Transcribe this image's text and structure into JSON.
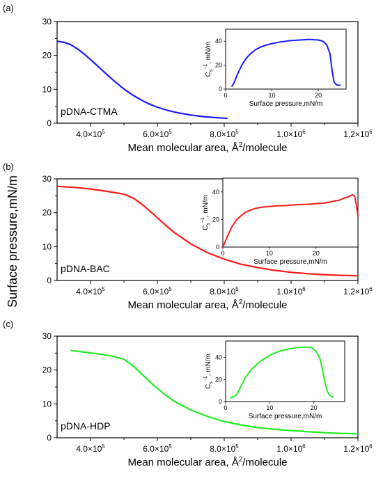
{
  "shared_ylabel": "Surface pressure,mN/m",
  "chart_data": [
    {
      "type": "line",
      "panel_label": "(a)",
      "annotation": "pDNA-CTMA",
      "xlabel_prefix": "Mean molecular area, Å",
      "xlabel_sup": "2",
      "xlabel_suffix": "/molecule",
      "xlim": [
        300000,
        1200000
      ],
      "ylim": [
        0,
        30
      ],
      "xticks": [
        {
          "value": 400000,
          "mantissa": "4.0×10",
          "exp": "5"
        },
        {
          "value": 600000,
          "mantissa": "6.0×10",
          "exp": "5"
        },
        {
          "value": 800000,
          "mantissa": "8.0×10",
          "exp": "5"
        },
        {
          "value": 1000000,
          "mantissa": "1.0×10",
          "exp": "6"
        },
        {
          "value": 1200000,
          "mantissa": "1.2×10",
          "exp": "6"
        }
      ],
      "yticks": [
        0,
        10,
        20,
        30
      ],
      "color": "#1a1aff",
      "x": [
        300000,
        320000,
        340000,
        360000,
        380000,
        400000,
        420000,
        440000,
        460000,
        480000,
        500000,
        520000,
        540000,
        560000,
        580000,
        600000,
        630000,
        660000,
        700000,
        740000,
        780000,
        810000
      ],
      "y": [
        24.2,
        23.9,
        23.2,
        22.0,
        20.5,
        18.8,
        17.0,
        15.2,
        13.4,
        11.7,
        10.1,
        8.7,
        7.5,
        6.4,
        5.5,
        4.7,
        3.8,
        3.1,
        2.4,
        1.9,
        1.6,
        1.4
      ],
      "inset": {
        "xlabel": "Surface pressure,mN/m",
        "ylabel_base": "C",
        "ylabel_sub": "s",
        "ylabel_sup": "−1",
        "ylabel_unit": ", mN/m",
        "xlim": [
          0,
          26
        ],
        "ylim": [
          0,
          50
        ],
        "xticks": [
          0,
          10,
          20
        ],
        "yticks": [
          0,
          20,
          40
        ],
        "x": [
          1.3,
          1.8,
          2.5,
          3.5,
          4.5,
          5.5,
          6.5,
          7.5,
          8.5,
          10,
          12,
          14,
          16,
          18,
          20,
          21,
          21.8,
          22.5,
          23,
          23.4,
          23.8,
          24.2,
          24.8
        ],
        "y": [
          2,
          5,
          12,
          20,
          26,
          30,
          33,
          35,
          36.5,
          38,
          39.5,
          40.5,
          41,
          41.5,
          41,
          40,
          37,
          30,
          15,
          6,
          4,
          3.2,
          3.2
        ]
      }
    },
    {
      "type": "line",
      "panel_label": "(b)",
      "annotation": "pDNA-BAC",
      "xlabel_prefix": "Mean molecular area, Å",
      "xlabel_sup": "2",
      "xlabel_suffix": "/molecule",
      "xlim": [
        300000,
        1200000
      ],
      "ylim": [
        0,
        30
      ],
      "xticks": [
        {
          "value": 400000,
          "mantissa": "4.0×10",
          "exp": "5"
        },
        {
          "value": 600000,
          "mantissa": "6.0×10",
          "exp": "5"
        },
        {
          "value": 800000,
          "mantissa": "8.0×10",
          "exp": "5"
        },
        {
          "value": 1000000,
          "mantissa": "1.0×10",
          "exp": "6"
        },
        {
          "value": 1200000,
          "mantissa": "1.2×10",
          "exp": "6"
        }
      ],
      "yticks": [
        0,
        10,
        20,
        30
      ],
      "color": "#ff1a1a",
      "x": [
        300000,
        350000,
        400000,
        450000,
        500000,
        530000,
        560000,
        590000,
        620000,
        650000,
        700000,
        750000,
        800000,
        850000,
        900000,
        950000,
        1000000,
        1050000,
        1100000,
        1150000,
        1200000
      ],
      "y": [
        27.8,
        27.5,
        27.0,
        26.3,
        25.5,
        24.2,
        22.0,
        19.4,
        16.7,
        14.2,
        10.8,
        8.2,
        6.3,
        4.8,
        3.8,
        3.0,
        2.4,
        2.0,
        1.7,
        1.5,
        1.4
      ],
      "inset": {
        "xlabel": "Surface pressure,mN/m",
        "ylabel_base": "C",
        "ylabel_sub": "s",
        "ylabel_sup": "−1",
        "ylabel_unit": ", mN/m",
        "xlim": [
          0,
          29
        ],
        "ylim": [
          0,
          50
        ],
        "xticks": [
          0,
          10,
          20
        ],
        "yticks": [
          0,
          20,
          40
        ],
        "x": [
          0,
          0.5,
          1,
          2,
          3,
          4,
          5,
          6,
          7,
          8,
          10,
          12,
          14,
          16,
          18,
          20,
          22,
          24,
          25,
          26,
          27,
          27.8,
          28.3,
          28.7,
          29
        ],
        "y": [
          0,
          4,
          8,
          15,
          20,
          23,
          25.5,
          27,
          28,
          28.8,
          29.5,
          30,
          30.2,
          30.8,
          31,
          31.5,
          32,
          33.5,
          34,
          35.5,
          36.5,
          38,
          37,
          30,
          22
        ]
      }
    },
    {
      "type": "line",
      "panel_label": "(c)",
      "annotation": "pDNA-HDP",
      "xlabel_prefix": "Mean molecular area, Å",
      "xlabel_sup": "2",
      "xlabel_suffix": "/molecule",
      "xlim": [
        300000,
        1200000
      ],
      "ylim": [
        0,
        30
      ],
      "xticks": [
        {
          "value": 400000,
          "mantissa": "4.0×10",
          "exp": "5"
        },
        {
          "value": 600000,
          "mantissa": "6.0×10",
          "exp": "5"
        },
        {
          "value": 800000,
          "mantissa": "8.0×10",
          "exp": "5"
        },
        {
          "value": 1000000,
          "mantissa": "1.0×10",
          "exp": "6"
        },
        {
          "value": 1200000,
          "mantissa": "1.2×10",
          "exp": "6"
        }
      ],
      "yticks": [
        0,
        10,
        20,
        30
      ],
      "color": "#22ee22",
      "x": [
        340000,
        380000,
        420000,
        460000,
        500000,
        530000,
        560000,
        590000,
        620000,
        650000,
        700000,
        750000,
        800000,
        850000,
        900000,
        950000,
        1000000,
        1050000,
        1100000,
        1150000,
        1200000
      ],
      "y": [
        25.8,
        25.3,
        24.8,
        24.2,
        23.2,
        21.0,
        18.2,
        15.4,
        12.9,
        10.8,
        8.2,
        6.3,
        4.8,
        3.8,
        3.0,
        2.5,
        2.1,
        1.8,
        1.5,
        1.3,
        1.2
      ],
      "inset": {
        "xlabel": "Surface pressure,mN/m",
        "ylabel_base": "C",
        "ylabel_sub": "s",
        "ylabel_sup": "−1",
        "ylabel_unit": ", mN/m",
        "xlim": [
          0,
          27
        ],
        "ylim": [
          0,
          55
        ],
        "xticks": [
          0,
          10,
          20
        ],
        "yticks": [
          0,
          20,
          40
        ],
        "x": [
          1,
          1.5,
          2.5,
          3.5,
          4.5,
          6,
          8,
          10,
          12,
          14,
          16,
          18,
          19.5,
          20.5,
          21.5,
          22,
          22.5,
          23,
          23.5,
          24,
          24.5
        ],
        "y": [
          3,
          4,
          6,
          14,
          22,
          30,
          37,
          42,
          45.5,
          47.5,
          49,
          49.5,
          49,
          46,
          38,
          28,
          18,
          10,
          6,
          4.5,
          4.5
        ]
      }
    }
  ]
}
